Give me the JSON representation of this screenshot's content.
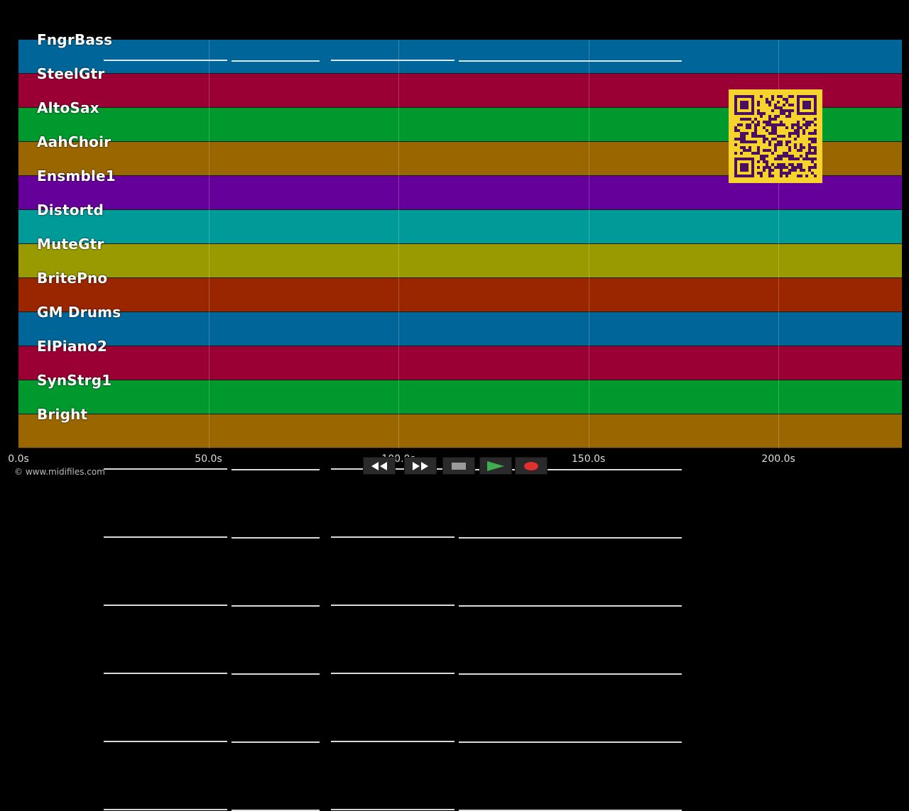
{
  "tracks": [
    {
      "name": "FngrBass",
      "color": "#00669a"
    },
    {
      "name": "SteelGtr",
      "color": "#9a0033"
    },
    {
      "name": "AltoSax",
      "color": "#00992d"
    },
    {
      "name": "AahChoir",
      "color": "#9a6600"
    },
    {
      "name": "Ensmble1",
      "color": "#66009a"
    },
    {
      "name": "Distortd",
      "color": "#009a99"
    },
    {
      "name": "MuteGtr",
      "color": "#999a00"
    },
    {
      "name": "BritePno",
      "color": "#9a2600"
    },
    {
      "name": "GM Drums",
      "color": "#00669a"
    },
    {
      "name": "ElPiano2",
      "color": "#9a0033"
    },
    {
      "name": "SynStrg1",
      "color": "#00992d"
    },
    {
      "name": "Bright",
      "color": "#9a6600"
    }
  ],
  "timeline": {
    "ticks": [
      "0.0s",
      "50.0s",
      "100.0s",
      "150.0s",
      "200.0s"
    ],
    "tick_values": [
      0,
      50,
      100,
      150,
      200
    ],
    "max_seconds": 232.5
  },
  "copyright": "© www.midifiles.com",
  "controls": [
    {
      "name": "rewind-button",
      "icon": "rewind-icon"
    },
    {
      "name": "fast-forward-button",
      "icon": "fast-forward-icon"
    },
    {
      "name": "stop-button",
      "icon": "stop-icon"
    },
    {
      "name": "play-button",
      "icon": "play-icon",
      "color": "#2e9e3e"
    },
    {
      "name": "record-button",
      "icon": "record-icon",
      "color": "#e03030"
    }
  ],
  "qr_color": "#f6d32d",
  "qr_module_color": "#4a1060"
}
